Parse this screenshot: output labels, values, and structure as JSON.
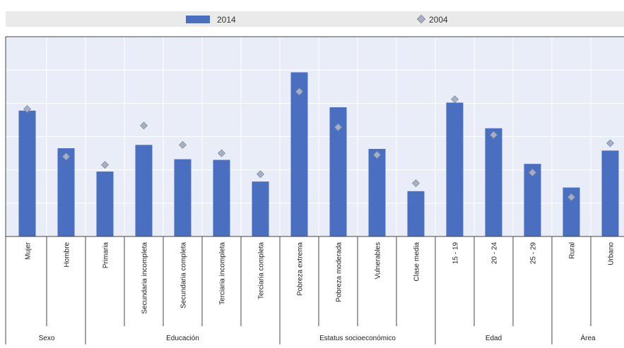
{
  "colors": {
    "bar": "#4a6fc0",
    "marker": "#a7afc2",
    "plot_bg": "#e9edf7",
    "grid": "#ffffff",
    "legend_bg": "#eaeaea",
    "text": "#222222"
  },
  "legend": {
    "bars_label": "2014",
    "markers_label": "2004"
  },
  "chart_data": {
    "type": "bar",
    "title": "",
    "xlabel": "",
    "ylabel": "",
    "ylim": [
      0,
      60
    ],
    "grid": true,
    "legend_position": "top",
    "categories": [
      "Mujer",
      "Hombre",
      "Primaria",
      "Secundaria incompleta",
      "Secundaria completa",
      "Terciaria incompleta",
      "Terciaria completa",
      "Pobreza extrema",
      "Pobreza moderada",
      "Vulnerables",
      "Clase media",
      "15 - 19",
      "20 - 24",
      "25 - 29",
      "Rural",
      "Urbano"
    ],
    "groups": [
      {
        "label": "Sexo",
        "start": 0,
        "end": 1
      },
      {
        "label": "Educación",
        "start": 2,
        "end": 6
      },
      {
        "label": "Estatus socioeconómico",
        "start": 7,
        "end": 10
      },
      {
        "label": "Edad",
        "start": 11,
        "end": 13
      },
      {
        "label": "Área",
        "start": 14,
        "end": 15
      }
    ],
    "series": [
      {
        "name": "2014",
        "kind": "bar",
        "values": [
          37.8,
          26.5,
          19.5,
          27.5,
          23.2,
          23.0,
          16.5,
          49.3,
          38.8,
          26.3,
          13.6,
          40.2,
          32.5,
          21.8,
          14.7,
          25.8
        ]
      },
      {
        "name": "2004",
        "kind": "marker",
        "values": [
          38.3,
          24.0,
          21.5,
          33.3,
          27.5,
          25.0,
          18.7,
          43.5,
          32.8,
          24.5,
          16.0,
          41.2,
          30.5,
          19.2,
          11.8,
          28.0
        ]
      }
    ]
  }
}
